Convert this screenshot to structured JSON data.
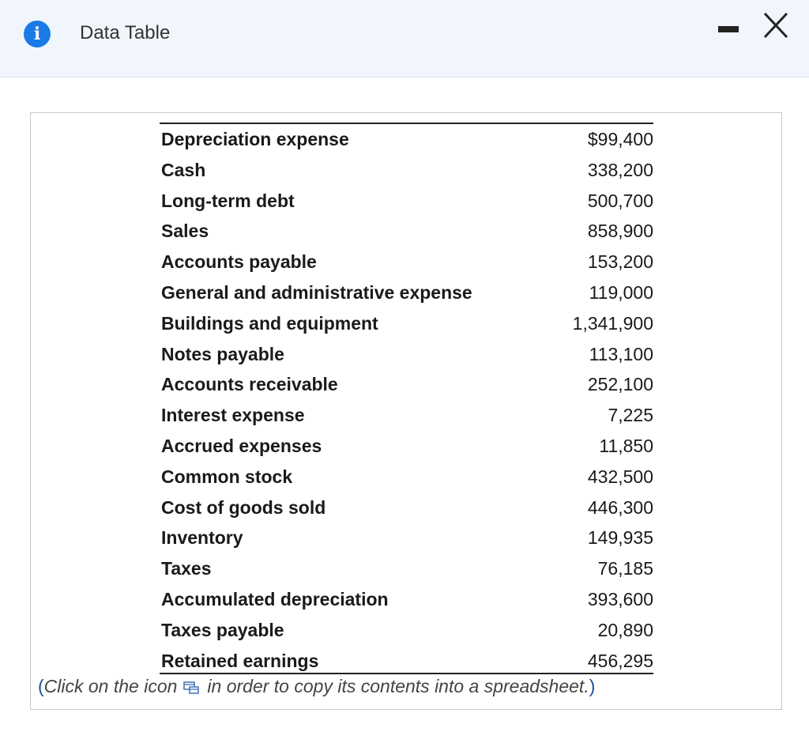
{
  "dialog": {
    "title": "Data Table",
    "icons": {
      "info": "info-icon",
      "minimize": "minimize-icon",
      "close": "close-icon",
      "copy": "spreadsheet-copy-icon"
    },
    "colors": {
      "accent": "#1a7ae6",
      "header_bg": "#f1f6fc"
    }
  },
  "table": {
    "rows": [
      {
        "label": "Depreciation expense",
        "value": "$99,400"
      },
      {
        "label": "Cash",
        "value": "338,200"
      },
      {
        "label": "Long-term debt",
        "value": "500,700"
      },
      {
        "label": "Sales",
        "value": "858,900"
      },
      {
        "label": "Accounts payable",
        "value": "153,200"
      },
      {
        "label": "General and administrative expense",
        "value": "119,000"
      },
      {
        "label": "Buildings and equipment",
        "value": "1,341,900"
      },
      {
        "label": "Notes payable",
        "value": "113,100"
      },
      {
        "label": "Accounts receivable",
        "value": "252,100"
      },
      {
        "label": "Interest expense",
        "value": "7,225"
      },
      {
        "label": "Accrued expenses",
        "value": "11,850"
      },
      {
        "label": "Common stock",
        "value": "432,500"
      },
      {
        "label": "Cost of goods sold",
        "value": "446,300"
      },
      {
        "label": "Inventory",
        "value": "149,935"
      },
      {
        "label": "Taxes",
        "value": "76,185"
      },
      {
        "label": "Accumulated depreciation",
        "value": "393,600"
      },
      {
        "label": "Taxes payable",
        "value": "20,890"
      },
      {
        "label": "Retained earnings",
        "value": "456,295"
      }
    ]
  },
  "footnote": {
    "open_paren": "(",
    "before_icon": "Click on the icon",
    "after_icon": "in order to copy its contents into a spreadsheet.",
    "close_paren": ")"
  }
}
